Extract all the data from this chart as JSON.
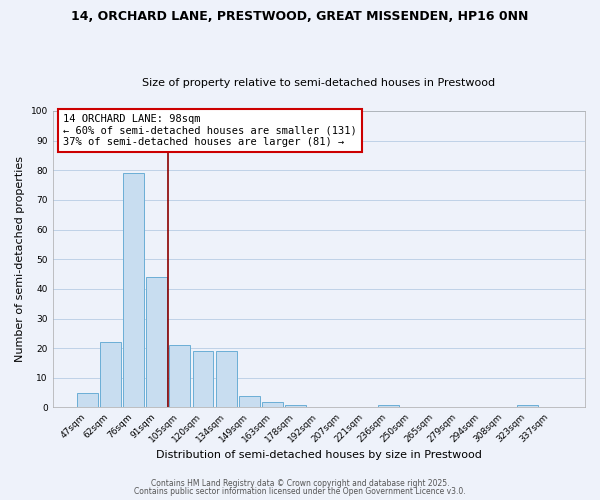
{
  "title": "14, ORCHARD LANE, PRESTWOOD, GREAT MISSENDEN, HP16 0NN",
  "subtitle": "Size of property relative to semi-detached houses in Prestwood",
  "xlabel": "Distribution of semi-detached houses by size in Prestwood",
  "ylabel": "Number of semi-detached properties",
  "categories": [
    "47sqm",
    "62sqm",
    "76sqm",
    "91sqm",
    "105sqm",
    "120sqm",
    "134sqm",
    "149sqm",
    "163sqm",
    "178sqm",
    "192sqm",
    "207sqm",
    "221sqm",
    "236sqm",
    "250sqm",
    "265sqm",
    "279sqm",
    "294sqm",
    "308sqm",
    "323sqm",
    "337sqm"
  ],
  "values": [
    5,
    22,
    79,
    44,
    21,
    19,
    19,
    4,
    2,
    1,
    0,
    0,
    0,
    1,
    0,
    0,
    0,
    0,
    0,
    1,
    0
  ],
  "bar_color": "#c8ddf0",
  "bar_edge_color": "#6baed6",
  "bg_color": "#eef2fa",
  "grid_color": "#b8cce4",
  "vline_color": "#8b0000",
  "annotation_text": "14 ORCHARD LANE: 98sqm\n← 60% of semi-detached houses are smaller (131)\n37% of semi-detached houses are larger (81) →",
  "annotation_box_color": "#ffffff",
  "annotation_border_color": "#cc0000",
  "ylim": [
    0,
    100
  ],
  "yticks": [
    0,
    10,
    20,
    30,
    40,
    50,
    60,
    70,
    80,
    90,
    100
  ],
  "footer1": "Contains HM Land Registry data © Crown copyright and database right 2025.",
  "footer2": "Contains public sector information licensed under the Open Government Licence v3.0.",
  "title_fontsize": 9,
  "subtitle_fontsize": 8,
  "axis_label_fontsize": 8,
  "tick_fontsize": 6.5,
  "annotation_fontsize": 7.5,
  "footer_fontsize": 5.5
}
